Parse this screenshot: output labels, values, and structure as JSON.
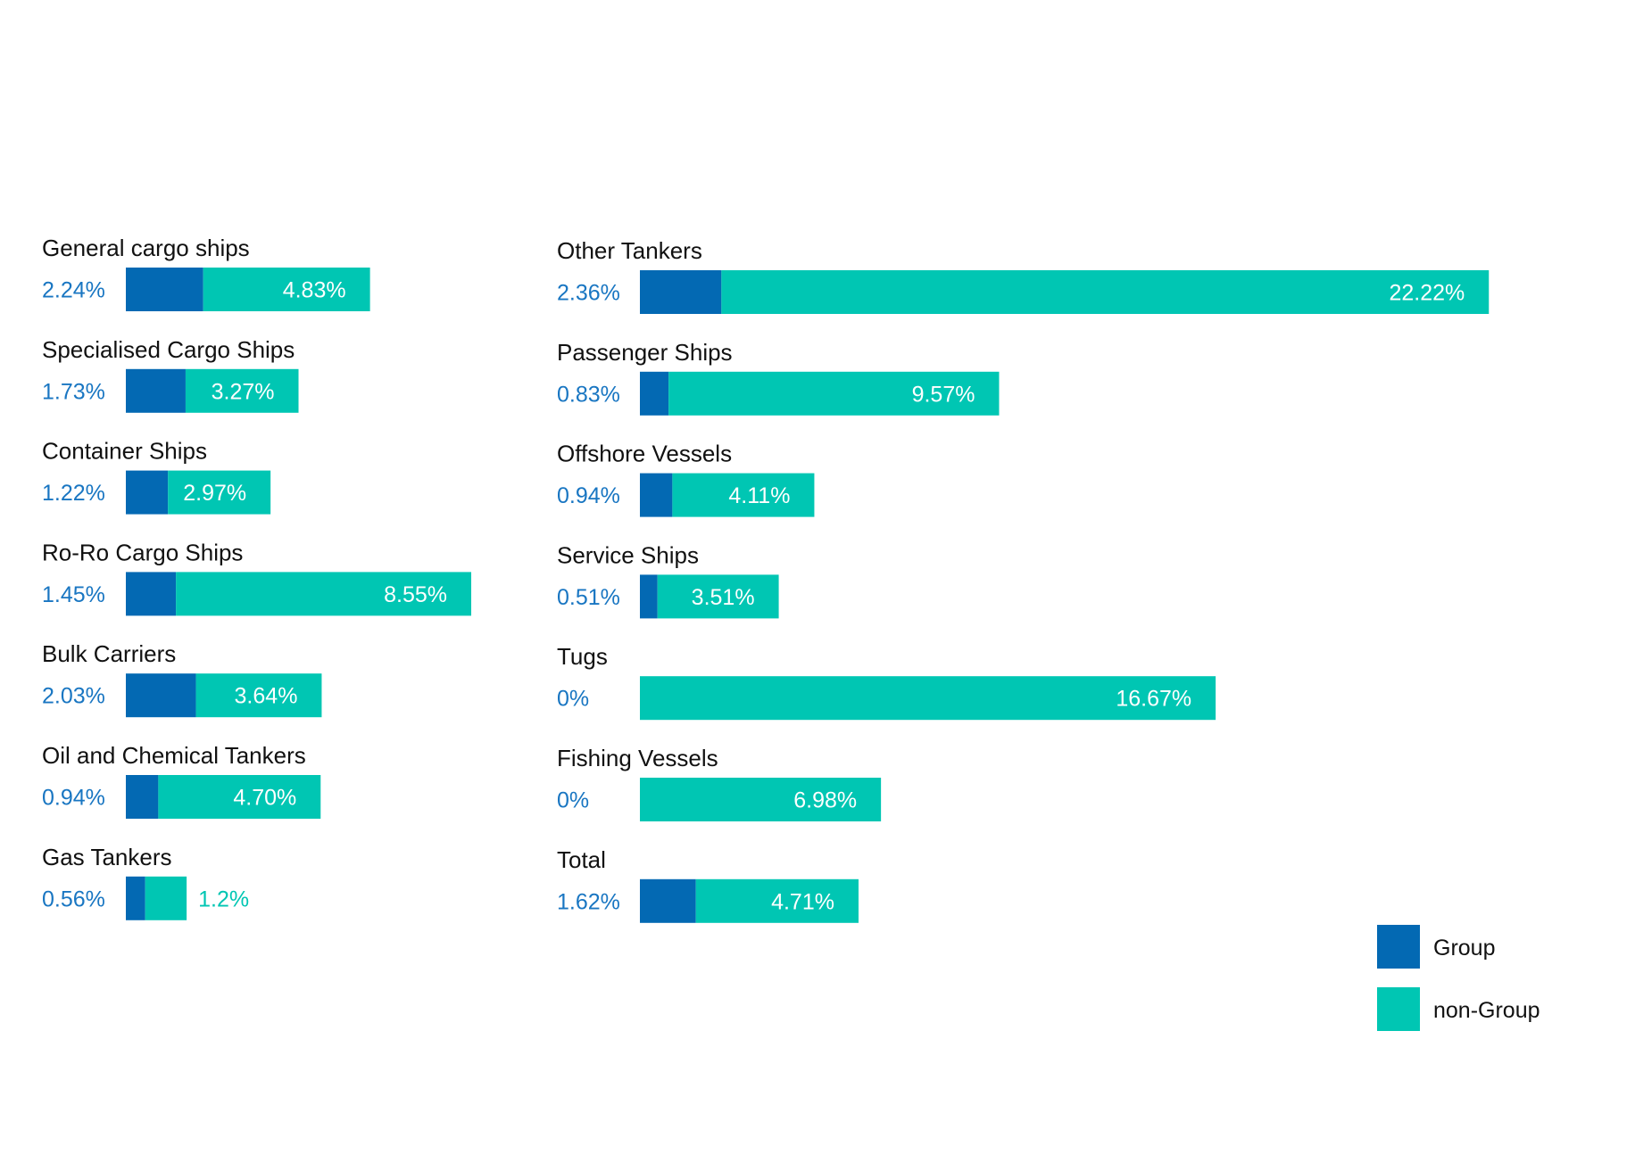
{
  "chart_data": {
    "type": "bar",
    "stacked": true,
    "orientation": "horizontal",
    "colors": {
      "group": "#0369b3",
      "non_group": "#00c6b3",
      "group_label": "#1976c2",
      "category_label": "#111111"
    },
    "legend": {
      "position": "bottom-right",
      "items": [
        "Group",
        "non-Group"
      ]
    },
    "panels": [
      {
        "categories": [
          "General cargo ships",
          "Specialised Cargo Ships",
          "Container Ships",
          "Ro-Ro Cargo Ships",
          "Bulk Carriers",
          "Oil and Chemical Tankers",
          "Gas Tankers"
        ],
        "series": [
          {
            "name": "Group",
            "values": [
              2.24,
              1.73,
              1.22,
              1.45,
              2.03,
              0.94,
              0.56
            ],
            "labels": [
              "2.24%",
              "1.73%",
              "1.22%",
              "1.45%",
              "2.03%",
              "0.94%",
              "0.56%"
            ]
          },
          {
            "name": "non-Group",
            "values": [
              4.83,
              3.27,
              2.97,
              8.55,
              3.64,
              4.7,
              1.2
            ],
            "labels": [
              "4.83%",
              "3.27%",
              "2.97%",
              "8.55%",
              "3.64%",
              "4.70%",
              "1.2%"
            ]
          }
        ]
      },
      {
        "categories": [
          "Other Tankers",
          "Passenger Ships",
          "Offshore Vessels",
          "Service Ships",
          "Tugs",
          "Fishing Vessels",
          "Total"
        ],
        "series": [
          {
            "name": "Group",
            "values": [
              2.36,
              0.83,
              0.94,
              0.51,
              0,
              0,
              1.62
            ],
            "labels": [
              "2.36%",
              "0.83%",
              "0.94%",
              "0.51%",
              "0%",
              "0%",
              "1.62%"
            ]
          },
          {
            "name": "non-Group",
            "values": [
              22.22,
              9.57,
              4.11,
              3.51,
              16.67,
              6.98,
              4.71
            ],
            "labels": [
              "22.22%",
              "9.57%",
              "4.11%",
              "3.51%",
              "16.67%",
              "6.98%",
              "4.71%"
            ]
          }
        ]
      }
    ]
  }
}
